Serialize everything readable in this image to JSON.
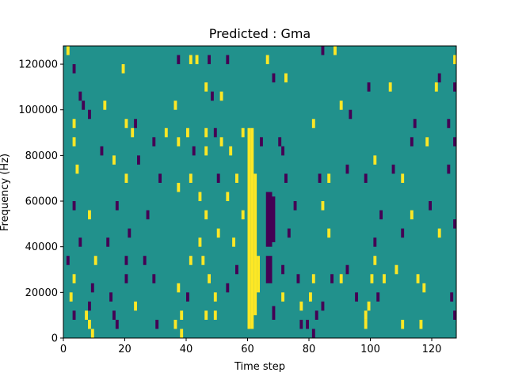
{
  "chart_data": {
    "type": "heatmap",
    "title": "Predicted : Gma",
    "xlabel": "Time step",
    "ylabel": "Frequency (Hz)",
    "xlim": [
      0,
      128
    ],
    "ylim": [
      0,
      128000
    ],
    "x_ticks": [
      "0",
      "20",
      "40",
      "60",
      "80",
      "100",
      "120"
    ],
    "y_ticks": [
      "0",
      "20000",
      "40000",
      "60000",
      "80000",
      "100000",
      "120000"
    ],
    "grid": false,
    "colormap": "viridis",
    "colors": {
      "background": "#21918c",
      "high": "#fde725",
      "low": "#440154"
    },
    "bands": [
      {
        "level": "high",
        "x_range": [
          60,
          61
        ],
        "y_range": [
          4000,
          92000
        ]
      },
      {
        "level": "high",
        "x_range": [
          61,
          62
        ],
        "y_range": [
          4000,
          92000
        ]
      },
      {
        "level": "high",
        "x_range": [
          62,
          63
        ],
        "y_range": [
          10000,
          72000
        ]
      },
      {
        "level": "high",
        "x_range": [
          63,
          64
        ],
        "y_range": [
          20000,
          36000
        ]
      },
      {
        "level": "low",
        "x_range": [
          66,
          68
        ],
        "y_range": [
          40000,
          64000
        ]
      },
      {
        "level": "low",
        "x_range": [
          66,
          68
        ],
        "y_range": [
          24000,
          36000
        ]
      },
      {
        "level": "low",
        "x_range": [
          68,
          69
        ],
        "y_range": [
          8000,
          14000
        ]
      },
      {
        "level": "low",
        "x_range": [
          68,
          69
        ],
        "y_range": [
          42000,
          62000
        ]
      }
    ],
    "cells": [
      {
        "level": "high",
        "x": 1,
        "y": 126000
      },
      {
        "level": "low",
        "x": 3,
        "y": 118000
      },
      {
        "level": "high",
        "x": 19,
        "y": 118000
      },
      {
        "level": "low",
        "x": 37,
        "y": 122000
      },
      {
        "level": "high",
        "x": 41,
        "y": 122000
      },
      {
        "level": "high",
        "x": 43,
        "y": 122000
      },
      {
        "level": "low",
        "x": 47,
        "y": 122000
      },
      {
        "level": "low",
        "x": 53,
        "y": 122000
      },
      {
        "level": "high",
        "x": 66,
        "y": 122000
      },
      {
        "level": "low",
        "x": 84,
        "y": 126000
      },
      {
        "level": "high",
        "x": 88,
        "y": 126000
      },
      {
        "level": "high",
        "x": 127,
        "y": 122000
      },
      {
        "level": "low",
        "x": 5,
        "y": 106000
      },
      {
        "level": "low",
        "x": 6,
        "y": 102000
      },
      {
        "level": "high",
        "x": 13,
        "y": 102000
      },
      {
        "level": "high",
        "x": 46,
        "y": 110000
      },
      {
        "level": "low",
        "x": 48,
        "y": 106000
      },
      {
        "level": "high",
        "x": 51,
        "y": 106000
      },
      {
        "level": "high",
        "x": 36,
        "y": 102000
      },
      {
        "level": "low",
        "x": 68,
        "y": 114000
      },
      {
        "level": "high",
        "x": 72,
        "y": 114000
      },
      {
        "level": "low",
        "x": 99,
        "y": 110000
      },
      {
        "level": "high",
        "x": 106,
        "y": 110000
      },
      {
        "level": "high",
        "x": 121,
        "y": 110000
      },
      {
        "level": "low",
        "x": 122,
        "y": 114000
      },
      {
        "level": "low",
        "x": 127,
        "y": 110000
      },
      {
        "level": "high",
        "x": 90,
        "y": 102000
      },
      {
        "level": "low",
        "x": 93,
        "y": 98000
      },
      {
        "level": "high",
        "x": 3,
        "y": 94000
      },
      {
        "level": "low",
        "x": 8,
        "y": 98000
      },
      {
        "level": "high",
        "x": 20,
        "y": 94000
      },
      {
        "level": "high",
        "x": 22,
        "y": 90000
      },
      {
        "level": "low",
        "x": 23,
        "y": 94000
      },
      {
        "level": "high",
        "x": 33,
        "y": 90000
      },
      {
        "level": "high",
        "x": 40,
        "y": 90000
      },
      {
        "level": "high",
        "x": 46,
        "y": 90000
      },
      {
        "level": "low",
        "x": 49,
        "y": 90000
      },
      {
        "level": "high",
        "x": 58,
        "y": 90000
      },
      {
        "level": "low",
        "x": 64,
        "y": 86000
      },
      {
        "level": "low",
        "x": 70,
        "y": 86000
      },
      {
        "level": "high",
        "x": 81,
        "y": 94000
      },
      {
        "level": "low",
        "x": 114,
        "y": 94000
      },
      {
        "level": "low",
        "x": 125,
        "y": 94000
      },
      {
        "level": "high",
        "x": 3,
        "y": 86000
      },
      {
        "level": "low",
        "x": 12,
        "y": 82000
      },
      {
        "level": "low",
        "x": 29,
        "y": 86000
      },
      {
        "level": "high",
        "x": 37,
        "y": 86000
      },
      {
        "level": "low",
        "x": 42,
        "y": 82000
      },
      {
        "level": "high",
        "x": 46,
        "y": 82000
      },
      {
        "level": "high",
        "x": 51,
        "y": 86000
      },
      {
        "level": "high",
        "x": 54,
        "y": 82000
      },
      {
        "level": "low",
        "x": 71,
        "y": 82000
      },
      {
        "level": "high",
        "x": 101,
        "y": 78000
      },
      {
        "level": "low",
        "x": 113,
        "y": 86000
      },
      {
        "level": "high",
        "x": 118,
        "y": 86000
      },
      {
        "level": "low",
        "x": 127,
        "y": 86000
      },
      {
        "level": "high",
        "x": 4,
        "y": 74000
      },
      {
        "level": "high",
        "x": 16,
        "y": 78000
      },
      {
        "level": "high",
        "x": 20,
        "y": 70000
      },
      {
        "level": "low",
        "x": 24,
        "y": 78000
      },
      {
        "level": "low",
        "x": 31,
        "y": 70000
      },
      {
        "level": "high",
        "x": 37,
        "y": 66000
      },
      {
        "level": "high",
        "x": 41,
        "y": 70000
      },
      {
        "level": "low",
        "x": 50,
        "y": 70000
      },
      {
        "level": "high",
        "x": 56,
        "y": 70000
      },
      {
        "level": "low",
        "x": 72,
        "y": 70000
      },
      {
        "level": "low",
        "x": 83,
        "y": 70000
      },
      {
        "level": "high",
        "x": 86,
        "y": 70000
      },
      {
        "level": "low",
        "x": 92,
        "y": 74000
      },
      {
        "level": "low",
        "x": 98,
        "y": 70000
      },
      {
        "level": "low",
        "x": 107,
        "y": 74000
      },
      {
        "level": "high",
        "x": 110,
        "y": 70000
      },
      {
        "level": "low",
        "x": 125,
        "y": 74000
      },
      {
        "level": "low",
        "x": 3,
        "y": 58000
      },
      {
        "level": "high",
        "x": 8,
        "y": 54000
      },
      {
        "level": "low",
        "x": 17,
        "y": 58000
      },
      {
        "level": "low",
        "x": 27,
        "y": 54000
      },
      {
        "level": "high",
        "x": 44,
        "y": 62000
      },
      {
        "level": "high",
        "x": 46,
        "y": 54000
      },
      {
        "level": "high",
        "x": 53,
        "y": 62000
      },
      {
        "level": "high",
        "x": 58,
        "y": 54000
      },
      {
        "level": "low",
        "x": 75,
        "y": 58000
      },
      {
        "level": "high",
        "x": 84,
        "y": 58000
      },
      {
        "level": "low",
        "x": 103,
        "y": 54000
      },
      {
        "level": "high",
        "x": 113,
        "y": 54000
      },
      {
        "level": "low",
        "x": 119,
        "y": 58000
      },
      {
        "level": "low",
        "x": 127,
        "y": 50000
      },
      {
        "level": "low",
        "x": 5,
        "y": 42000
      },
      {
        "level": "low",
        "x": 14,
        "y": 42000
      },
      {
        "level": "low",
        "x": 21,
        "y": 46000
      },
      {
        "level": "high",
        "x": 44,
        "y": 42000
      },
      {
        "level": "high",
        "x": 50,
        "y": 46000
      },
      {
        "level": "high",
        "x": 55,
        "y": 42000
      },
      {
        "level": "low",
        "x": 73,
        "y": 46000
      },
      {
        "level": "high",
        "x": 86,
        "y": 46000
      },
      {
        "level": "low",
        "x": 101,
        "y": 42000
      },
      {
        "level": "low",
        "x": 110,
        "y": 46000
      },
      {
        "level": "high",
        "x": 122,
        "y": 46000
      },
      {
        "level": "low",
        "x": 1,
        "y": 34000
      },
      {
        "level": "high",
        "x": 10,
        "y": 34000
      },
      {
        "level": "low",
        "x": 20,
        "y": 34000
      },
      {
        "level": "low",
        "x": 26,
        "y": 34000
      },
      {
        "level": "high",
        "x": 41,
        "y": 34000
      },
      {
        "level": "high",
        "x": 45,
        "y": 34000
      },
      {
        "level": "low",
        "x": 56,
        "y": 30000
      },
      {
        "level": "low",
        "x": 71,
        "y": 30000
      },
      {
        "level": "low",
        "x": 92,
        "y": 30000
      },
      {
        "level": "high",
        "x": 101,
        "y": 34000
      },
      {
        "level": "high",
        "x": 108,
        "y": 30000
      },
      {
        "level": "high",
        "x": 3,
        "y": 26000
      },
      {
        "level": "low",
        "x": 9,
        "y": 22000
      },
      {
        "level": "low",
        "x": 20,
        "y": 26000
      },
      {
        "level": "low",
        "x": 29,
        "y": 26000
      },
      {
        "level": "high",
        "x": 37,
        "y": 22000
      },
      {
        "level": "high",
        "x": 47,
        "y": 26000
      },
      {
        "level": "low",
        "x": 53,
        "y": 22000
      },
      {
        "level": "low",
        "x": 76,
        "y": 26000
      },
      {
        "level": "high",
        "x": 81,
        "y": 26000
      },
      {
        "level": "low",
        "x": 87,
        "y": 26000
      },
      {
        "level": "high",
        "x": 90,
        "y": 26000
      },
      {
        "level": "high",
        "x": 100,
        "y": 26000
      },
      {
        "level": "high",
        "x": 104,
        "y": 26000
      },
      {
        "level": "high",
        "x": 115,
        "y": 26000
      },
      {
        "level": "high",
        "x": 117,
        "y": 22000
      },
      {
        "level": "high",
        "x": 2,
        "y": 18000
      },
      {
        "level": "low",
        "x": 8,
        "y": 14000
      },
      {
        "level": "low",
        "x": 15,
        "y": 18000
      },
      {
        "level": "high",
        "x": 23,
        "y": 14000
      },
      {
        "level": "low",
        "x": 40,
        "y": 18000
      },
      {
        "level": "high",
        "x": 49,
        "y": 18000
      },
      {
        "level": "high",
        "x": 71,
        "y": 18000
      },
      {
        "level": "high",
        "x": 80,
        "y": 18000
      },
      {
        "level": "low",
        "x": 84,
        "y": 14000
      },
      {
        "level": "low",
        "x": 95,
        "y": 18000
      },
      {
        "level": "high",
        "x": 99,
        "y": 14000
      },
      {
        "level": "low",
        "x": 102,
        "y": 18000
      },
      {
        "level": "low",
        "x": 126,
        "y": 18000
      },
      {
        "level": "low",
        "x": 3,
        "y": 10000
      },
      {
        "level": "high",
        "x": 7,
        "y": 10000
      },
      {
        "level": "low",
        "x": 16,
        "y": 10000
      },
      {
        "level": "high",
        "x": 38,
        "y": 10000
      },
      {
        "level": "high",
        "x": 46,
        "y": 10000
      },
      {
        "level": "high",
        "x": 49,
        "y": 10000
      },
      {
        "level": "high",
        "x": 77,
        "y": 14000
      },
      {
        "level": "low",
        "x": 82,
        "y": 10000
      },
      {
        "level": "high",
        "x": 98,
        "y": 10000
      },
      {
        "level": "low",
        "x": 127,
        "y": 10000
      },
      {
        "level": "high",
        "x": 8,
        "y": 6000
      },
      {
        "level": "low",
        "x": 17,
        "y": 6000
      },
      {
        "level": "low",
        "x": 30,
        "y": 6000
      },
      {
        "level": "high",
        "x": 36,
        "y": 6000
      },
      {
        "level": "low",
        "x": 77,
        "y": 6000
      },
      {
        "level": "low",
        "x": 79,
        "y": 6000
      },
      {
        "level": "high",
        "x": 98,
        "y": 6000
      },
      {
        "level": "high",
        "x": 110,
        "y": 6000
      },
      {
        "level": "high",
        "x": 116,
        "y": 6000
      },
      {
        "level": "high",
        "x": 9,
        "y": 2000
      },
      {
        "level": "high",
        "x": 38,
        "y": 2000
      },
      {
        "level": "low",
        "x": 81,
        "y": 2000
      }
    ]
  }
}
